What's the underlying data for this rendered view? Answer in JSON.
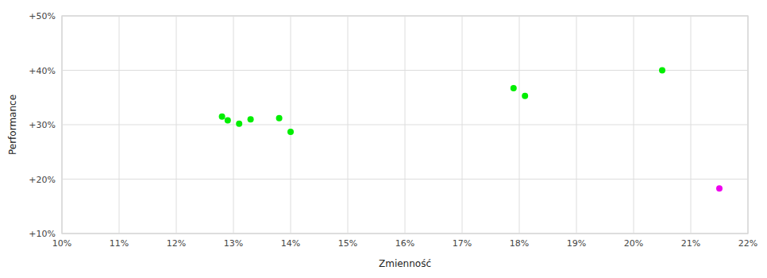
{
  "chart_data": {
    "type": "scatter",
    "xlabel": "Zmienność",
    "ylabel": "Performance",
    "xlim": [
      0.1,
      0.22
    ],
    "ylim": [
      0.1,
      0.5
    ],
    "xticks": [
      {
        "value": 0.1,
        "label": "10%"
      },
      {
        "value": 0.11,
        "label": "11%"
      },
      {
        "value": 0.12,
        "label": "12%"
      },
      {
        "value": 0.13,
        "label": "13%"
      },
      {
        "value": 0.14,
        "label": "14%"
      },
      {
        "value": 0.15,
        "label": "15%"
      },
      {
        "value": 0.16,
        "label": "16%"
      },
      {
        "value": 0.17,
        "label": "17%"
      },
      {
        "value": 0.18,
        "label": "18%"
      },
      {
        "value": 0.19,
        "label": "19%"
      },
      {
        "value": 0.2,
        "label": "20%"
      },
      {
        "value": 0.21,
        "label": "21%"
      },
      {
        "value": 0.22,
        "label": "22%"
      }
    ],
    "yticks": [
      {
        "value": 0.1,
        "label": "+10%"
      },
      {
        "value": 0.2,
        "label": "+20%"
      },
      {
        "value": 0.3,
        "label": "+30%"
      },
      {
        "value": 0.4,
        "label": "+40%"
      },
      {
        "value": 0.5,
        "label": "+50%"
      }
    ],
    "grid": true,
    "series": [
      {
        "color": "#00ee00",
        "x": [
          0.128,
          0.129,
          0.131,
          0.133,
          0.138,
          0.14,
          0.179,
          0.181,
          0.205
        ],
        "values": [
          0.315,
          0.308,
          0.302,
          0.31,
          0.312,
          0.287,
          0.367,
          0.353,
          0.4
        ]
      },
      {
        "color": "#ee00ee",
        "x": [
          0.215
        ],
        "values": [
          0.183
        ]
      }
    ]
  }
}
